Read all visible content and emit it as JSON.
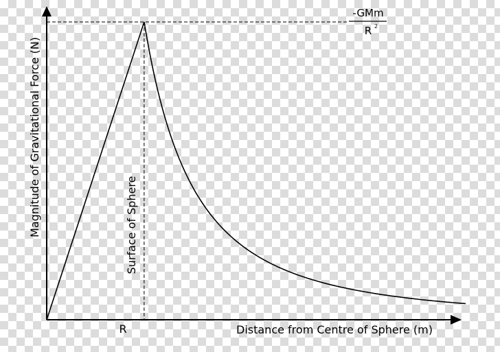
{
  "chart_data": {
    "type": "line",
    "title": "",
    "xlabel": "Distance from Centre of Sphere (m)",
    "ylabel": "Magnitude of Gravitational Force (N)",
    "x_tick_labels": [
      "R"
    ],
    "y_reference_label": {
      "numerator": "-GMm",
      "denominator": "R",
      "denominator_exponent": "2"
    },
    "annotations": [
      "Surface of Sphere"
    ],
    "xlim": [
      0,
      4.3
    ],
    "ylim": [
      0,
      1.0
    ],
    "series": [
      {
        "x": [
          0,
          1
        ],
        "y": [
          0,
          1
        ]
      },
      {
        "x": [
          1,
          1.25,
          1.5,
          1.75,
          2,
          2.5,
          3,
          3.5,
          4,
          4.3
        ],
        "y": [
          1,
          0.64,
          0.444,
          0.327,
          0.25,
          0.16,
          0.111,
          0.082,
          0.0625,
          0.054
        ]
      }
    ],
    "grid": false,
    "legend": "none",
    "colors": {
      "line": "#000000",
      "background": "#ffffff",
      "checker": "#dcdcdc"
    }
  }
}
